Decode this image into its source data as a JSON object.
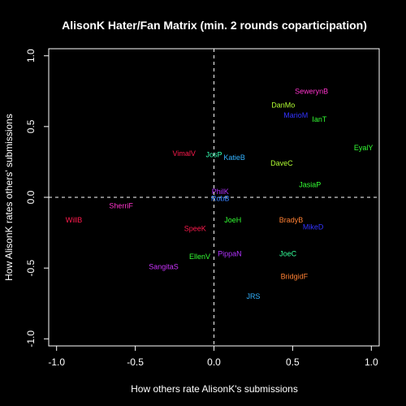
{
  "chart_data": {
    "type": "scatter",
    "title": "AlisonK Hater/Fan Matrix (min. 2 rounds coparticipation)",
    "xlabel": "How others rate AlisonK's submissions",
    "ylabel": "How AlisonK rates others' submissions",
    "xlim": [
      -1.05,
      1.05
    ],
    "ylim": [
      -1.05,
      1.05
    ],
    "xticks": [
      "-1.0",
      "-0.5",
      "0.0",
      "0.5",
      "1.0"
    ],
    "yticks": [
      "-1.0",
      "-0.5",
      "0.0",
      "0.5",
      "1.0"
    ],
    "reference_lines": {
      "x": 0,
      "y": 0,
      "style": "dashed"
    },
    "points": [
      {
        "label": "SewerynB",
        "x": 0.62,
        "y": 0.75,
        "color": "#ff33cc"
      },
      {
        "label": "DanMo",
        "x": 0.44,
        "y": 0.65,
        "color": "#b2ff33"
      },
      {
        "label": "MarioM",
        "x": 0.52,
        "y": 0.58,
        "color": "#3333ff"
      },
      {
        "label": "IanT",
        "x": 0.67,
        "y": 0.55,
        "color": "#33ff33"
      },
      {
        "label": "EyalY",
        "x": 0.95,
        "y": 0.35,
        "color": "#33ff33"
      },
      {
        "label": "VimalV",
        "x": -0.19,
        "y": 0.31,
        "color": "#ff1a4d"
      },
      {
        "label": "JosP",
        "x": 0.0,
        "y": 0.3,
        "color": "#33ffb2"
      },
      {
        "label": "KatieB",
        "x": 0.13,
        "y": 0.28,
        "color": "#33b2ff"
      },
      {
        "label": "DaveC",
        "x": 0.43,
        "y": 0.24,
        "color": "#b2ff33"
      },
      {
        "label": "JasiaP",
        "x": 0.61,
        "y": 0.09,
        "color": "#33ff33"
      },
      {
        "label": "PhilK",
        "x": 0.04,
        "y": 0.04,
        "color": "#b233ff"
      },
      {
        "label": "RobB",
        "x": 0.04,
        "y": -0.01,
        "color": "#3380ff"
      },
      {
        "label": "SherriF",
        "x": -0.59,
        "y": -0.06,
        "color": "#ff33cc"
      },
      {
        "label": "WillB",
        "x": -0.89,
        "y": -0.16,
        "color": "#ff1a4d"
      },
      {
        "label": "BradyB",
        "x": 0.49,
        "y": -0.16,
        "color": "#ff8033"
      },
      {
        "label": "JoeH",
        "x": 0.12,
        "y": -0.16,
        "color": "#33ff33"
      },
      {
        "label": "MikeD",
        "x": 0.63,
        "y": -0.21,
        "color": "#3333ff"
      },
      {
        "label": "SpeeK",
        "x": -0.12,
        "y": -0.22,
        "color": "#ff1a4d"
      },
      {
        "label": "PippaN",
        "x": 0.1,
        "y": -0.4,
        "color": "#b233ff"
      },
      {
        "label": "JoeC",
        "x": 0.47,
        "y": -0.4,
        "color": "#33ff99"
      },
      {
        "label": "EllenV",
        "x": -0.09,
        "y": -0.42,
        "color": "#33ff33"
      },
      {
        "label": "SangitaS",
        "x": -0.32,
        "y": -0.49,
        "color": "#cc33ff"
      },
      {
        "label": "BridgidF",
        "x": 0.51,
        "y": -0.56,
        "color": "#ff8033"
      },
      {
        "label": "JRS",
        "x": 0.25,
        "y": -0.7,
        "color": "#33b2ff"
      }
    ]
  }
}
